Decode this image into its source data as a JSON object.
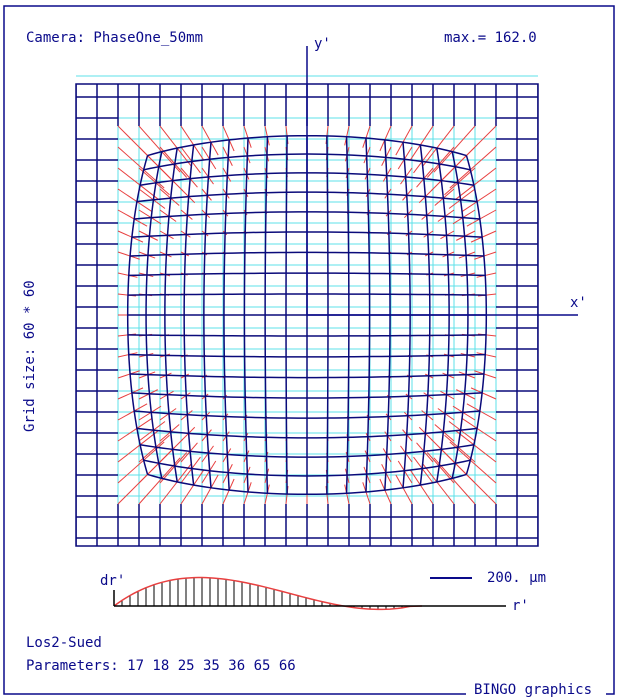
{
  "header": {
    "camera": "Camera: PhaseOne_50mm",
    "max": "max.= 162.0"
  },
  "axes": {
    "y": "y'",
    "x": "x'",
    "dr": "dr'",
    "r": "r'"
  },
  "grid_size": "Grid size: 60 * 60",
  "scale": "200. µm",
  "footer": {
    "name": "Los2-Sued",
    "parameters": "Parameters: 17 18 25 35 36 65 66",
    "brand": "BINGO graphics"
  }
}
